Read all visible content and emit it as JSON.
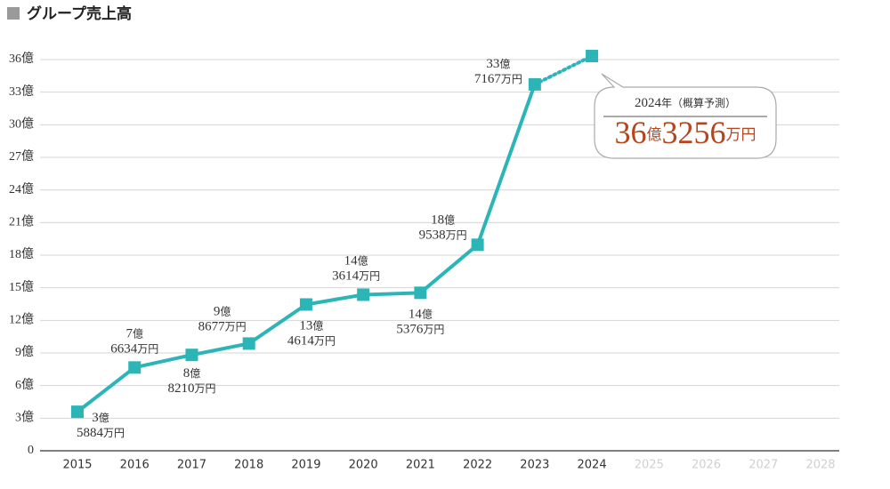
{
  "chart_data": {
    "type": "line",
    "title": "グループ売上高",
    "categories": [
      "2015",
      "2016",
      "2017",
      "2018",
      "2019",
      "2020",
      "2021",
      "2022",
      "2023",
      "2024",
      "2025",
      "2026",
      "2027",
      "2028"
    ],
    "series": [
      {
        "name": "グループ売上高",
        "color": "#2cb5b7",
        "values": [
          3.5884,
          7.6634,
          8.821,
          9.8677,
          13.4614,
          14.3614,
          14.5376,
          18.9538,
          33.7167,
          36.3256,
          null,
          null,
          null,
          null
        ],
        "value_labels": [
          [
            "3億",
            "5884万円"
          ],
          [
            "7億",
            "6634万円"
          ],
          [
            "8億",
            "8210万円"
          ],
          [
            "9億",
            "8677万円"
          ],
          [
            "13億",
            "4614万円"
          ],
          [
            "14億",
            "3614万円"
          ],
          [
            "14億",
            "5376万円"
          ],
          [
            "18億",
            "9538万円"
          ],
          [
            "33億",
            "7167万円"
          ],
          [
            "36億3256万円"
          ],
          null,
          null,
          null,
          null
        ]
      }
    ],
    "annotation": "2024年（概算予測）",
    "forecast_last_segment": true,
    "ylim": [
      0,
      36
    ],
    "yticks": [
      0,
      {
        "value": 3,
        "label": "3億"
      },
      {
        "value": 6,
        "label": "6億"
      },
      {
        "value": 9,
        "label": "9億"
      },
      {
        "value": 12,
        "label": "12億"
      },
      {
        "value": 15,
        "label": "15億"
      },
      {
        "value": 18,
        "label": "18億"
      },
      {
        "value": 21,
        "label": "21億"
      },
      {
        "value": 24,
        "label": "24億"
      },
      {
        "value": 27,
        "label": "27億"
      },
      {
        "value": 30,
        "label": "30億"
      },
      {
        "value": 33,
        "label": "33億"
      },
      {
        "value": 36,
        "label": "36億"
      }
    ],
    "grid": true
  }
}
